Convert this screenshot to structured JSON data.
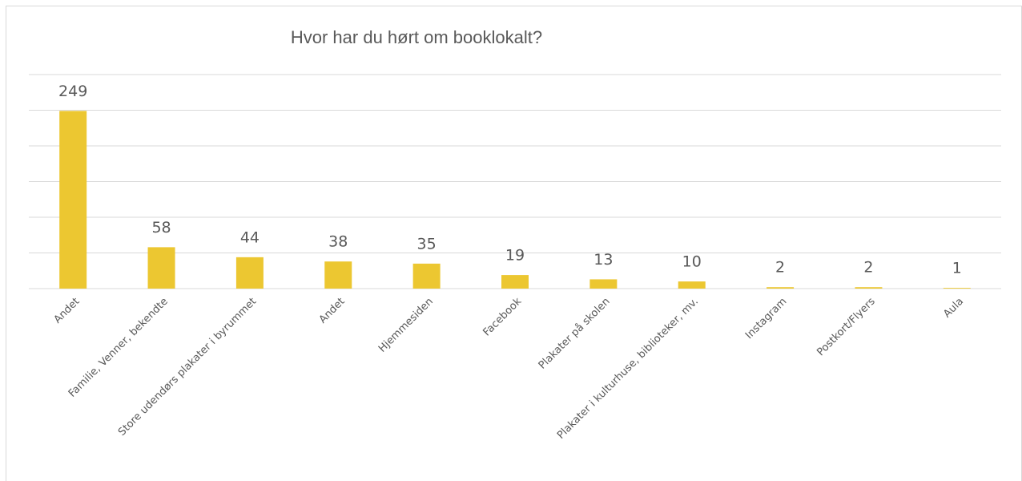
{
  "chart_data": {
    "type": "bar",
    "title": "Hvor har du hørt om booklokalt?",
    "categories": [
      "Andet",
      "Familie, Venner, bekendte",
      "Store udendørs plakater i byrummet",
      "Andet",
      "Hjemmesiden",
      "Facebook",
      "Plakater på skolen",
      "Plakater i kulturhuse, biblioteker, mv.",
      "Instagram",
      "Postkort/Flyers",
      "Aula"
    ],
    "values": [
      249,
      58,
      44,
      38,
      35,
      19,
      13,
      10,
      2,
      2,
      1
    ],
    "color": "#ecc731",
    "ylim": [
      0,
      300
    ],
    "yticks": [
      0,
      50,
      100,
      150,
      200,
      250,
      300
    ],
    "grid": true
  }
}
